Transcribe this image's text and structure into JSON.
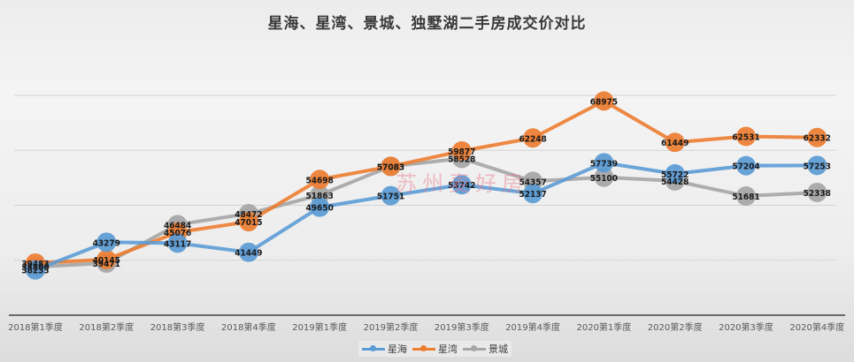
{
  "chart_data": {
    "type": "line",
    "title": "星海、星湾、景城、独墅湖二手房成交价对比",
    "xlabel": "",
    "ylabel": "",
    "categories": [
      "2018第1季度",
      "2018第2季度",
      "2018第3季度",
      "2018第4季度",
      "2019第1季度",
      "2019第2季度",
      "2019第3季度",
      "2019第4季度",
      "2020第1季度",
      "2020第2季度",
      "2020第3季度",
      "2020第4季度"
    ],
    "series": [
      {
        "name": "星海",
        "color": "#5b9bd5",
        "values": [
          38233,
          43279,
          43117,
          41449,
          49650,
          51751,
          53742,
          52137,
          57739,
          55722,
          57204,
          57253
        ]
      },
      {
        "name": "星湾",
        "color": "#ed7d31",
        "values": [
          39483,
          40145,
          45076,
          47015,
          54698,
          57083,
          59877,
          62248,
          68975,
          61449,
          62531,
          62332
        ]
      },
      {
        "name": "景城",
        "color": "#a5a5a5",
        "values": [
          38800,
          39471,
          46484,
          48472,
          51863,
          57083,
          58528,
          54357,
          55100,
          54428,
          51681,
          52338
        ]
      }
    ],
    "ylim": [
      30000,
      70000
    ],
    "gridlines": [
      40000,
      50000,
      60000,
      70000
    ],
    "grid": true,
    "legend_position": "bottom",
    "data_labels": true
  },
  "watermark": "苏州麦好房",
  "legend": [
    {
      "name": "星海",
      "color": "#5b9bd5"
    },
    {
      "name": "星湾",
      "color": "#ed7d31"
    },
    {
      "name": "景城",
      "color": "#a5a5a5"
    }
  ]
}
